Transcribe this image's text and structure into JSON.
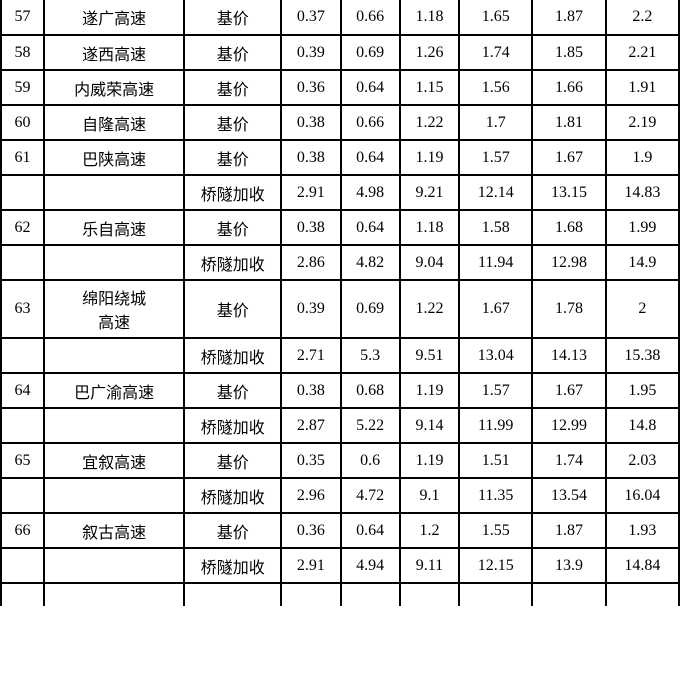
{
  "table": {
    "rows": [
      {
        "num": "57",
        "name": "遂广高速",
        "type": "基价",
        "v1": "0.37",
        "v2": "0.66",
        "v3": "1.18",
        "v4": "1.65",
        "v5": "1.87",
        "v6": "2.2"
      },
      {
        "num": "58",
        "name": "遂西高速",
        "type": "基价",
        "v1": "0.39",
        "v2": "0.69",
        "v3": "1.26",
        "v4": "1.74",
        "v5": "1.85",
        "v6": "2.21"
      },
      {
        "num": "59",
        "name": "内威荣高速",
        "type": "基价",
        "v1": "0.36",
        "v2": "0.64",
        "v3": "1.15",
        "v4": "1.56",
        "v5": "1.66",
        "v6": "1.91"
      },
      {
        "num": "60",
        "name": "自隆高速",
        "type": "基价",
        "v1": "0.38",
        "v2": "0.66",
        "v3": "1.22",
        "v4": "1.7",
        "v5": "1.81",
        "v6": "2.19"
      },
      {
        "num": "61",
        "name": "巴陕高速",
        "type": "基价",
        "v1": "0.38",
        "v2": "0.64",
        "v3": "1.19",
        "v4": "1.57",
        "v5": "1.67",
        "v6": "1.9"
      },
      {
        "num": "",
        "name": "",
        "type": "桥隧加收",
        "v1": "2.91",
        "v2": "4.98",
        "v3": "9.21",
        "v4": "12.14",
        "v5": "13.15",
        "v6": "14.83"
      },
      {
        "num": "62",
        "name": "乐自高速",
        "type": "基价",
        "v1": "0.38",
        "v2": "0.64",
        "v3": "1.18",
        "v4": "1.58",
        "v5": "1.68",
        "v6": "1.99"
      },
      {
        "num": "",
        "name": "",
        "type": "桥隧加收",
        "v1": "2.86",
        "v2": "4.82",
        "v3": "9.04",
        "v4": "11.94",
        "v5": "12.98",
        "v6": "14.9"
      },
      {
        "num": "63",
        "name": "绵阳绕城\n高速",
        "type": "基价",
        "v1": "0.39",
        "v2": "0.69",
        "v3": "1.22",
        "v4": "1.67",
        "v5": "1.78",
        "v6": "2",
        "tall": true
      },
      {
        "num": "",
        "name": "",
        "type": "桥隧加收",
        "v1": "2.71",
        "v2": "5.3",
        "v3": "9.51",
        "v4": "13.04",
        "v5": "14.13",
        "v6": "15.38"
      },
      {
        "num": "64",
        "name": "巴广渝高速",
        "type": "基价",
        "v1": "0.38",
        "v2": "0.68",
        "v3": "1.19",
        "v4": "1.57",
        "v5": "1.67",
        "v6": "1.95"
      },
      {
        "num": "",
        "name": "",
        "type": "桥隧加收",
        "v1": "2.87",
        "v2": "5.22",
        "v3": "9.14",
        "v4": "11.99",
        "v5": "12.99",
        "v6": "14.8"
      },
      {
        "num": "65",
        "name": "宜叙高速",
        "type": "基价",
        "v1": "0.35",
        "v2": "0.6",
        "v3": "1.19",
        "v4": "1.51",
        "v5": "1.74",
        "v6": "2.03"
      },
      {
        "num": "",
        "name": "",
        "type": "桥隧加收",
        "v1": "2.96",
        "v2": "4.72",
        "v3": "9.1",
        "v4": "11.35",
        "v5": "13.54",
        "v6": "16.04"
      },
      {
        "num": "66",
        "name": "叙古高速",
        "type": "基价",
        "v1": "0.36",
        "v2": "0.64",
        "v3": "1.2",
        "v4": "1.55",
        "v5": "1.87",
        "v6": "1.93"
      },
      {
        "num": "",
        "name": "",
        "type": "桥隧加收",
        "v1": "2.91",
        "v2": "4.94",
        "v3": "9.11",
        "v4": "12.15",
        "v5": "13.9",
        "v6": "14.84"
      }
    ]
  }
}
